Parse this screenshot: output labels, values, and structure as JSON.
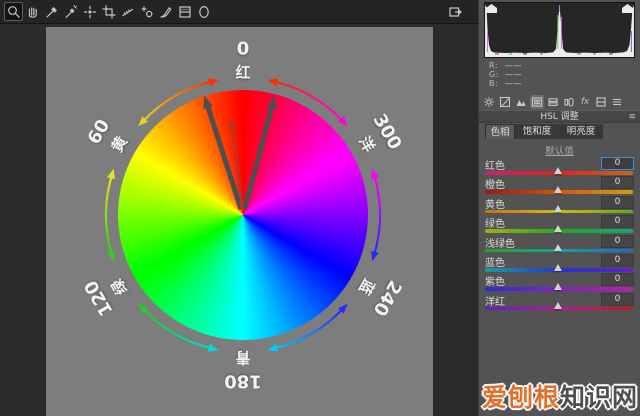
{
  "toolbar": {
    "tools": [
      "zoom-tool",
      "hand-tool",
      "white-balance-tool",
      "color-sampler-tool",
      "targeted-adjustment-tool",
      "crop-tool",
      "straighten-tool",
      "red-eye-tool",
      "adjustment-brush-tool",
      "graduated-filter-tool",
      "radial-filter-tool"
    ],
    "selected_tool": "zoom-tool",
    "right_button": "open-preferences"
  },
  "histogram": {
    "r_label": "R:",
    "g_label": "G:",
    "b_label": "B:",
    "r_value": "——",
    "g_value": "——",
    "b_value": "——",
    "spikes_percent": [
      0,
      50,
      100
    ]
  },
  "hsl_panel": {
    "panel_tabs": [
      "basic",
      "tone-curve",
      "detail",
      "hsl-grayscale",
      "split-toning",
      "lens-corrections",
      "effects",
      "presets",
      "camera-calibration"
    ],
    "selected_panel_tab": "hsl-grayscale",
    "title": "HSL 调整",
    "menu_icon": "≡",
    "tabs": [
      {
        "label": "色相",
        "selected": true
      },
      {
        "label": "饱和度",
        "selected": false
      },
      {
        "label": "明亮度",
        "selected": false
      }
    ],
    "default_button": "默认值",
    "sliders": [
      {
        "label": "红色",
        "value": "0",
        "focused": true,
        "gradient": [
          "#c0257d",
          "#e02321",
          "#c06a1d"
        ]
      },
      {
        "label": "橙色",
        "value": "0",
        "focused": false,
        "gradient": [
          "#9e1515",
          "#d95510",
          "#c9a013"
        ]
      },
      {
        "label": "黄色",
        "value": "0",
        "focused": false,
        "gradient": [
          "#c4731b",
          "#cdbc13",
          "#64a81a"
        ]
      },
      {
        "label": "绿色",
        "value": "0",
        "focused": false,
        "gradient": [
          "#a4b015",
          "#23a821",
          "#18a37a"
        ]
      },
      {
        "label": "浅绿色",
        "value": "0",
        "focused": false,
        "gradient": [
          "#27a32c",
          "#17a197",
          "#1e6cc9"
        ]
      },
      {
        "label": "蓝色",
        "value": "0",
        "focused": false,
        "gradient": [
          "#189da1",
          "#2336cf",
          "#661ec9"
        ]
      },
      {
        "label": "紫色",
        "value": "0",
        "focused": false,
        "gradient": [
          "#2a2dcf",
          "#8520cc",
          "#c01aab"
        ]
      },
      {
        "label": "洋红",
        "value": "0",
        "focused": false,
        "gradient": [
          "#5b1ec9",
          "#bd13a2",
          "#c91320"
        ]
      }
    ]
  },
  "wheel": {
    "hue_ring_colors": [
      "#ff0000",
      "#ffff00",
      "#00ff00",
      "#00ffff",
      "#0000ff",
      "#ff00ff"
    ],
    "labels": [
      {
        "degree": "0",
        "name": "红",
        "theta": 0
      },
      {
        "degree": "300",
        "name": "洋",
        "theta": 60
      },
      {
        "degree": "240",
        "name": "蓝",
        "theta": 120
      },
      {
        "degree": "180",
        "name": "青",
        "theta": 180
      },
      {
        "degree": "120",
        "name": "绿",
        "theta": 240
      },
      {
        "degree": "60",
        "name": "黄",
        "theta": 300
      }
    ],
    "arcs": [
      {
        "from": 14,
        "to": 46,
        "c1": "#ff2a00",
        "c2": "#ff00e0"
      },
      {
        "from": 74,
        "to": 106,
        "c1": "#ff00f0",
        "c2": "#2a2aff"
      },
      {
        "from": 134,
        "to": 166,
        "c1": "#2a2aff",
        "c2": "#00c8ff"
      },
      {
        "from": 194,
        "to": 226,
        "c1": "#00d8d8",
        "c2": "#20d020"
      },
      {
        "from": 254,
        "to": 286,
        "c1": "#30d020",
        "c2": "#e8e020"
      },
      {
        "from": 314,
        "to": 346,
        "c1": "#e8d020",
        "c2": "#ff3000"
      }
    ],
    "selection_arrows": [
      {
        "angle": -18,
        "length": 126,
        "width": 5,
        "color": "#4e4e50"
      },
      {
        "angle": 15,
        "length": 124,
        "width": 5,
        "color": "#4e4e50"
      },
      {
        "angle": -7,
        "length": 96,
        "width": 2.5,
        "color": "#b2372c"
      }
    ]
  },
  "watermark": {
    "part1": "爱刨根",
    "part2": "知识网",
    "color1": "#e4702c",
    "color2": "#4f4f4f"
  }
}
